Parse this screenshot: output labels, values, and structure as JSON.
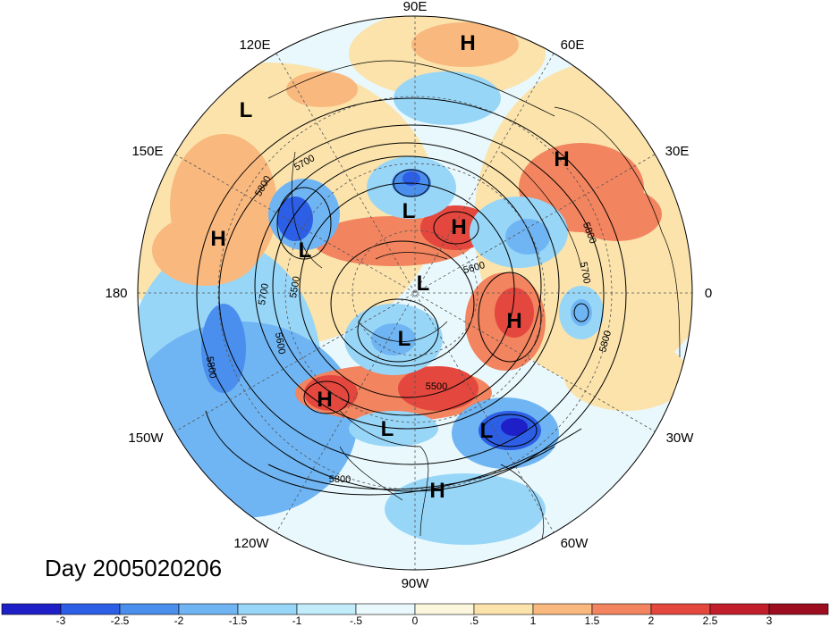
{
  "title": "Day 2005020206",
  "longitude_labels": {
    "e90": "90E",
    "e120": "120E",
    "e60": "60E",
    "e150": "150E",
    "e30": "30E",
    "d180": "180",
    "d0": "0",
    "w150": "150W",
    "w30": "30W",
    "w120": "120W",
    "w60": "60W",
    "w90": "90W"
  },
  "pressure_centers": [
    "H",
    "L",
    "L",
    "H",
    "L",
    "H",
    "H",
    "L",
    "L",
    "H",
    "L",
    "H",
    "L",
    "H"
  ],
  "contour_labels": [
    "5700",
    "5800",
    "5500",
    "5700",
    "5600",
    "5800",
    "5800",
    "5700",
    "5800",
    "5800",
    "5500",
    "5600"
  ],
  "colorbar": {
    "ticks": [
      "-3",
      "-2.5",
      "-2",
      "-1.5",
      "-1",
      "-.5",
      "0",
      ".5",
      "1",
      "1.5",
      "2",
      "2.5",
      "3"
    ],
    "colors": [
      "#1f1fc8",
      "#2d5ee6",
      "#4a8fee",
      "#6fb5f3",
      "#98d6f8",
      "#c3ecfb",
      "#e9f8fc",
      "#fcf7dc",
      "#fbe3ab",
      "#f8b87e",
      "#f2845f",
      "#e4473d",
      "#c21d2a",
      "#9b0d1f"
    ]
  }
}
